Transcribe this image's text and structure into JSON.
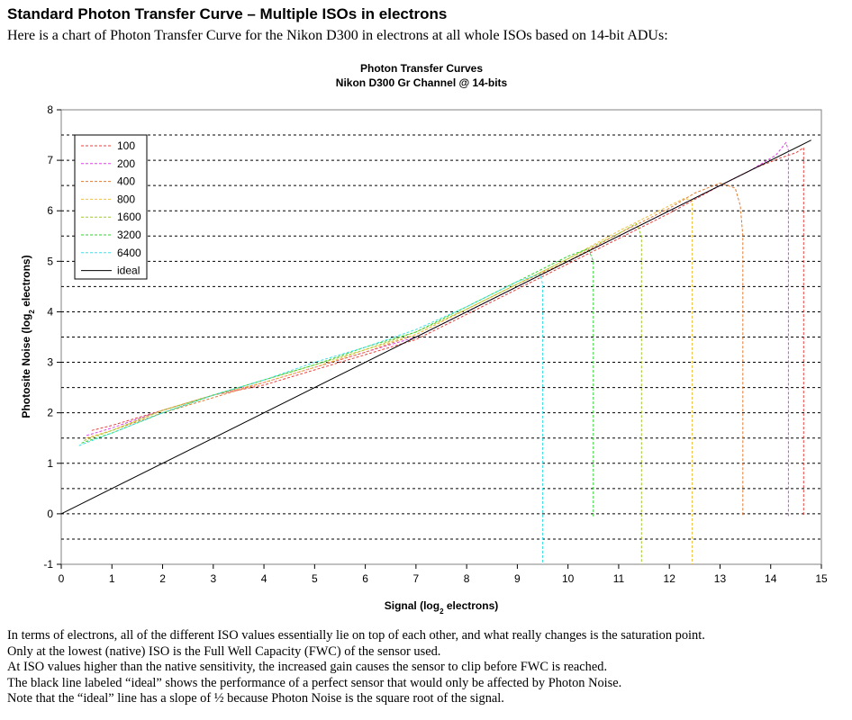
{
  "page": {
    "heading": "Standard Photon Transfer Curve – Multiple ISOs in electrons",
    "intro": "Here is a chart of Photon Transfer Curve for the Nikon D300 in electrons at all whole ISOs based on 14-bit ADUs:",
    "notes": [
      "In terms of electrons, all of the different ISO values essentially lie on top of each other, and what really changes is the saturation point.",
      "Only at the lowest (native) ISO is the Full Well Capacity (FWC) of the sensor used.",
      "At ISO values higher than the native sensitivity, the increased gain causes the sensor to clip before FWC is reached.",
      "The black line labeled “ideal” shows the performance of a perfect sensor that would only be affected by Photon Noise.",
      "Note that the “ideal” line has a slope of ½ because Photon Noise is the square root of the signal."
    ]
  },
  "chart_data": {
    "type": "line",
    "title": "Photon Transfer Curves",
    "subtitle": "Nikon D300 Gr Channel @ 14-bits",
    "xlabel": "Signal (log",
    "xlabel_sub": "2",
    "xlabel_end": " electrons)",
    "ylabel": "Photosite Noise (log",
    "ylabel_sub": "2",
    "ylabel_end": " electrons)",
    "xlim": [
      0,
      15
    ],
    "ylim": [
      -1,
      8
    ],
    "xticks": [
      "0",
      "1",
      "2",
      "3",
      "4",
      "5",
      "6",
      "7",
      "8",
      "9",
      "10",
      "11",
      "12",
      "13",
      "14",
      "15"
    ],
    "yticks": [
      "-1",
      "0",
      "1",
      "2",
      "3",
      "4",
      "5",
      "6",
      "7",
      "8"
    ],
    "grid": "dashed horizontal lines at 0.5 intervals",
    "legend_position": "top-left",
    "series": [
      {
        "name": "100",
        "color": "#e8413c",
        "style": "dashed",
        "x": [
          0.6,
          1,
          2,
          3,
          4,
          5,
          6,
          7,
          8,
          9,
          10,
          11,
          12,
          13,
          13.7,
          14.2,
          14.5,
          14.65,
          14.65
        ],
        "y": [
          1.65,
          1.75,
          2.05,
          2.35,
          2.55,
          2.85,
          3.15,
          3.45,
          3.95,
          4.45,
          4.95,
          5.45,
          5.95,
          6.5,
          6.85,
          7.05,
          7.15,
          7.25,
          -0.05
        ]
      },
      {
        "name": "200",
        "color": "#e040e8",
        "style": "dashed",
        "x": [
          0.5,
          1,
          2,
          3,
          4,
          5,
          6,
          7,
          8,
          9,
          10,
          11,
          12,
          13,
          13.6,
          14.1,
          14.3,
          14.35,
          14.35
        ],
        "y": [
          1.55,
          1.7,
          2.05,
          2.35,
          2.6,
          2.9,
          3.2,
          3.5,
          4.0,
          4.5,
          5.0,
          5.5,
          6.0,
          6.5,
          6.8,
          7.1,
          7.35,
          7.2,
          -0.05
        ]
      },
      {
        "name": "400",
        "color": "#e07a32",
        "style": "dashed",
        "x": [
          0.5,
          1,
          2,
          3,
          4,
          5,
          6,
          7,
          8,
          9,
          10,
          11,
          12,
          12.5,
          13,
          13.3,
          13.4,
          13.45,
          13.45
        ],
        "y": [
          1.5,
          1.65,
          2.0,
          2.3,
          2.6,
          2.9,
          3.2,
          3.55,
          4.05,
          4.55,
          5.0,
          5.55,
          6.05,
          6.35,
          6.55,
          6.45,
          6.1,
          5.5,
          -0.05
        ]
      },
      {
        "name": "800",
        "color": "#f0c040",
        "style": "dashed",
        "x": [
          0.5,
          1,
          2,
          3,
          4,
          5,
          6,
          7,
          8,
          9,
          10,
          11,
          11.5,
          12,
          12.3,
          12.45,
          12.45
        ],
        "y": [
          1.5,
          1.65,
          2.05,
          2.35,
          2.6,
          2.9,
          3.25,
          3.55,
          4.05,
          4.55,
          5.05,
          5.6,
          5.85,
          6.1,
          6.25,
          6.2,
          -1.0
        ]
      },
      {
        "name": "1600",
        "color": "#a0c830",
        "style": "dashed",
        "x": [
          0.45,
          1,
          2,
          3,
          4,
          5,
          6,
          7,
          8,
          9,
          10,
          11,
          11.35,
          11.45,
          11.45
        ],
        "y": [
          1.45,
          1.65,
          2.05,
          2.35,
          2.65,
          2.95,
          3.25,
          3.6,
          4.05,
          4.55,
          5.05,
          5.55,
          5.75,
          5.5,
          -1.0
        ]
      },
      {
        "name": "3200",
        "color": "#30d030",
        "style": "dashed",
        "x": [
          0.4,
          1,
          2,
          3,
          4,
          5,
          6,
          7,
          8,
          9,
          10,
          10.4,
          10.5,
          10.5
        ],
        "y": [
          1.4,
          1.6,
          2.0,
          2.35,
          2.65,
          2.95,
          3.3,
          3.6,
          4.1,
          4.6,
          5.1,
          5.25,
          5.0,
          -0.05
        ]
      },
      {
        "name": "6400",
        "color": "#40e0e8",
        "style": "dashed",
        "x": [
          0.35,
          1,
          2,
          3,
          4,
          5,
          6,
          7,
          8,
          9,
          9.45,
          9.5,
          9.5
        ],
        "y": [
          1.35,
          1.6,
          2.0,
          2.35,
          2.65,
          3.0,
          3.3,
          3.65,
          4.1,
          4.6,
          4.75,
          4.55,
          -1.0
        ]
      },
      {
        "name": "ideal",
        "color": "#000000",
        "style": "solid",
        "x": [
          0,
          14.8
        ],
        "y": [
          0,
          7.4
        ]
      }
    ]
  }
}
